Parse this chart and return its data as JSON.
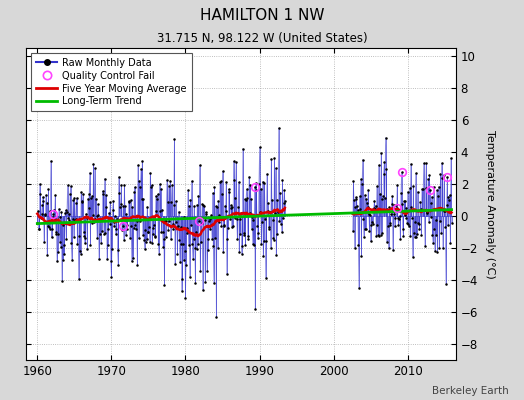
{
  "title": "HAMILTON 1 NW",
  "subtitle": "31.715 N, 98.122 W (United States)",
  "ylabel": "Temperature Anomaly (°C)",
  "attribution": "Berkeley Earth",
  "xlim": [
    1958.5,
    2016.5
  ],
  "ylim": [
    -9,
    10.5
  ],
  "yticks": [
    -8,
    -6,
    -4,
    -2,
    0,
    2,
    4,
    6,
    8,
    10
  ],
  "xticks": [
    1960,
    1970,
    1980,
    1990,
    2000,
    2010
  ],
  "bg_color": "#d8d8d8",
  "plot_bg_color": "#ffffff",
  "raw_line_color": "#3333cc",
  "raw_dot_color": "#000000",
  "moving_avg_color": "#dd0000",
  "trend_color": "#00bb00",
  "qc_fail_color": "#ff44ff",
  "seed": 12345
}
